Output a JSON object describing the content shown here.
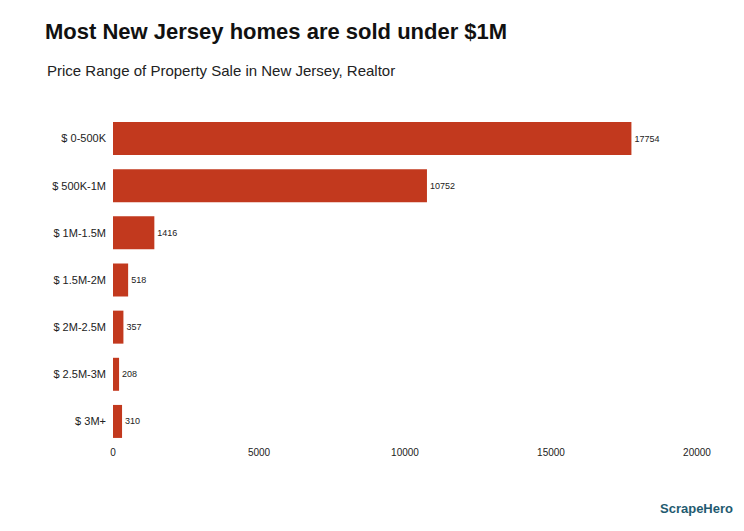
{
  "chart_data": {
    "type": "bar",
    "title": "Most New Jersey homes are sold under $1M",
    "subtitle": "Price Range of Property Sale in New Jersey, Realtor",
    "categories": [
      "$ 0-500K",
      "$ 500K-1M",
      "$ 1M-1.5M",
      "$ 1.5M-2M",
      "$ 2M-2.5M",
      "$ 2.5M-3M",
      "$ 3M+"
    ],
    "values": [
      17754,
      10752,
      1416,
      518,
      357,
      208,
      310
    ],
    "color": "#c2391e",
    "orientation": "horizontal",
    "data_labels": true,
    "grid": false,
    "xlim": [
      0,
      20000
    ],
    "xticks": [
      0,
      5000,
      10000,
      15000,
      20000
    ],
    "annotations": [
      "ScrapeHero"
    ]
  }
}
